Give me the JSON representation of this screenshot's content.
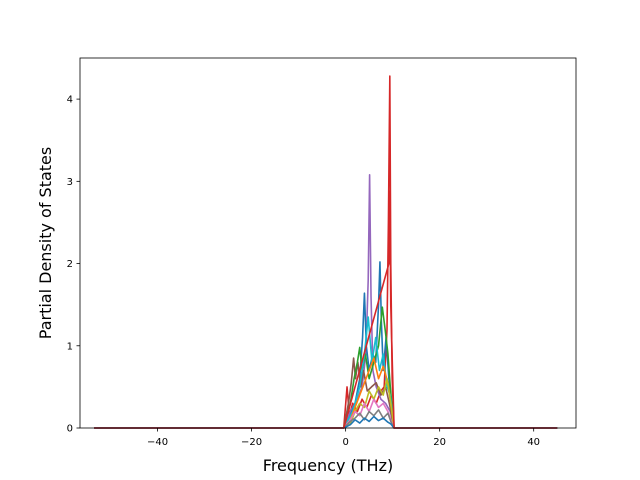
{
  "chart_data": {
    "type": "line",
    "title": "",
    "xlabel": "Frequency (THz)",
    "ylabel": "Partial Density of States",
    "xlim": [
      -56.5,
      49
    ],
    "ylim": [
      0,
      4.5
    ],
    "grid": false,
    "legend": "none",
    "x_ticks": [
      {
        "value": -40,
        "label": "−40"
      },
      {
        "value": -20,
        "label": "−20"
      },
      {
        "value": 0,
        "label": "0"
      },
      {
        "value": 20,
        "label": "20"
      },
      {
        "value": 40,
        "label": "40"
      }
    ],
    "y_ticks": [
      {
        "value": 0,
        "label": "0"
      },
      {
        "value": 1,
        "label": "1"
      },
      {
        "value": 2,
        "label": "2"
      },
      {
        "value": 3,
        "label": "3"
      },
      {
        "value": 4,
        "label": "4"
      }
    ],
    "x_range_plotted": [
      -53.5,
      45
    ],
    "series": [
      {
        "color": "#d62728",
        "x": [
          -53.5,
          -0.4,
          0.3,
          0.8,
          1.5,
          2.5,
          3.5,
          4.5,
          5.5,
          6.5,
          7.5,
          8.2,
          8.8,
          9.1,
          9.4,
          9.6,
          9.9,
          10.3,
          45
        ],
        "y": [
          0,
          0,
          0.5,
          0.15,
          0.3,
          0.2,
          0.35,
          0.25,
          0.4,
          0.3,
          0.45,
          0.5,
          1.2,
          2.5,
          4.28,
          2.0,
          0.6,
          0,
          0
        ]
      },
      {
        "color": "#9467bd",
        "x": [
          -53.5,
          -0.4,
          1.0,
          2.5,
          3.5,
          4.3,
          4.8,
          5.1,
          5.4,
          5.8,
          6.5,
          7.5,
          8.5,
          9.5,
          10.3,
          45
        ],
        "y": [
          0,
          0,
          0.2,
          0.35,
          0.5,
          0.9,
          1.8,
          3.08,
          1.6,
          0.7,
          0.5,
          0.35,
          0.3,
          0.2,
          0,
          0
        ]
      },
      {
        "color": "#1f77b4",
        "x": [
          -53.5,
          -0.4,
          1.0,
          2.0,
          3.0,
          3.6,
          4.0,
          4.4,
          5.0,
          5.8,
          6.4,
          7.0,
          7.3,
          7.6,
          8.0,
          8.6,
          9.2,
          10.3,
          45
        ],
        "y": [
          0,
          0,
          0.15,
          0.3,
          0.6,
          1.1,
          1.64,
          1.0,
          0.7,
          0.9,
          0.8,
          1.5,
          2.02,
          1.3,
          0.7,
          1.1,
          0.6,
          0,
          0
        ]
      },
      {
        "color": "#8c564b",
        "x": [
          -53.5,
          -0.4,
          0.6,
          1.2,
          1.7,
          2.1,
          2.6,
          3.2,
          3.8,
          4.6,
          5.5,
          6.5,
          7.5,
          8.5,
          9.3,
          10.3,
          45
        ],
        "y": [
          0,
          0,
          0.3,
          0.55,
          0.85,
          0.6,
          0.8,
          0.5,
          0.7,
          0.45,
          0.5,
          0.55,
          0.4,
          0.5,
          0.3,
          0,
          0
        ]
      },
      {
        "color": "#2ca02c",
        "x": [
          -53.5,
          -0.4,
          1.0,
          1.8,
          2.5,
          3.0,
          3.5,
          4.2,
          5.0,
          6.0,
          7.0,
          7.8,
          8.4,
          9.0,
          9.5,
          10.3,
          45
        ],
        "y": [
          0,
          0,
          0.3,
          0.6,
          0.8,
          0.98,
          0.7,
          0.9,
          0.6,
          0.8,
          1.0,
          1.47,
          1.2,
          0.9,
          0.5,
          0,
          0
        ]
      },
      {
        "color": "#17becf",
        "x": [
          -53.5,
          -0.4,
          1.5,
          3.0,
          4.0,
          4.8,
          5.6,
          6.4,
          7.2,
          8.0,
          8.8,
          9.5,
          10.3,
          45
        ],
        "y": [
          0,
          0,
          0.2,
          0.5,
          0.9,
          1.35,
          0.8,
          1.1,
          0.7,
          0.9,
          0.5,
          0.4,
          0,
          0
        ]
      },
      {
        "color": "#ff7f0e",
        "x": [
          -53.5,
          -0.4,
          1.0,
          2.0,
          3.0,
          4.0,
          5.0,
          6.0,
          7.0,
          8.0,
          9.0,
          9.6,
          10.3,
          45
        ],
        "y": [
          0,
          0,
          0.1,
          0.25,
          0.4,
          0.55,
          0.7,
          0.85,
          0.6,
          0.75,
          0.55,
          0.3,
          0,
          0
        ]
      },
      {
        "color": "#bcbd22",
        "x": [
          -53.5,
          -0.4,
          1.0,
          2.0,
          3.0,
          4.0,
          5.0,
          6.0,
          7.0,
          8.0,
          8.8,
          9.6,
          10.3,
          45
        ],
        "y": [
          0,
          0,
          0.05,
          0.2,
          0.3,
          0.25,
          0.45,
          0.35,
          0.5,
          0.4,
          0.6,
          0.3,
          0,
          0
        ]
      },
      {
        "color": "#e377c2",
        "x": [
          -53.5,
          -0.4,
          1.0,
          2.0,
          3.0,
          4.0,
          5.0,
          6.0,
          7.0,
          8.0,
          9.0,
          9.6,
          10.3,
          45
        ],
        "y": [
          0,
          0,
          0.1,
          0.2,
          0.15,
          0.3,
          0.2,
          0.35,
          0.25,
          0.3,
          0.2,
          0.1,
          0,
          0
        ]
      },
      {
        "color": "#7f7f7f",
        "x": [
          -53.5,
          -0.4,
          1.0,
          2.0,
          3.0,
          4.0,
          5.0,
          6.0,
          7.0,
          8.0,
          9.0,
          9.6,
          10.3,
          45
        ],
        "y": [
          0,
          0,
          0.08,
          0.12,
          0.18,
          0.1,
          0.2,
          0.15,
          0.22,
          0.12,
          0.18,
          0.08,
          0,
          0
        ]
      },
      {
        "color": "#1f77b4",
        "x": [
          -53.5,
          -0.4,
          1.0,
          2.0,
          3.0,
          4.0,
          5.0,
          6.0,
          7.0,
          8.0,
          9.0,
          9.6,
          10.3,
          45
        ],
        "y": [
          0,
          0,
          0.04,
          0.1,
          0.06,
          0.12,
          0.08,
          0.14,
          0.09,
          0.12,
          0.07,
          0.05,
          0,
          0
        ]
      },
      {
        "color": "#d62728",
        "x": [
          -53.5,
          -0.4,
          9.2,
          9.4,
          9.6,
          10.3,
          45
        ],
        "y": [
          0,
          0,
          2.0,
          2.88,
          1.5,
          0,
          0
        ]
      }
    ]
  }
}
